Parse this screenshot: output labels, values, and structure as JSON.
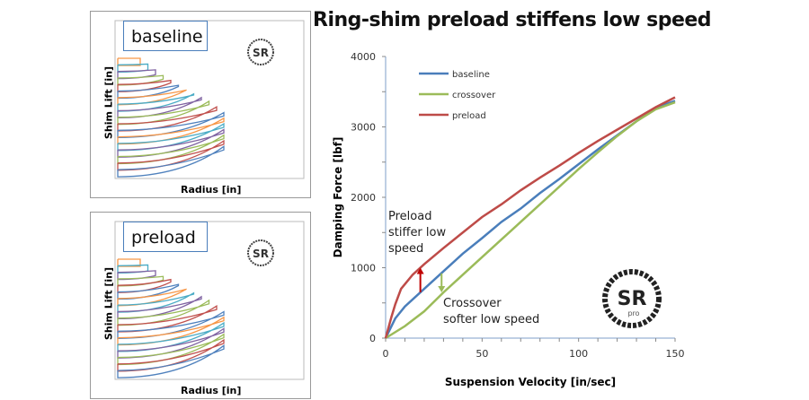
{
  "title": "Ring-shim preload stiffens low speed",
  "panels": [
    {
      "label": "baseline",
      "xlabel": "Radius [in]",
      "ylabel": "Shim Lift [in]"
    },
    {
      "label": "preload",
      "xlabel": "Radius [in]",
      "ylabel": "Shim Lift [in]"
    }
  ],
  "watermark": "www.ShimReStackor.com SR pro",
  "chart_data": {
    "type": "line",
    "title": "",
    "xlabel": "Suspension Velocity [in/sec]",
    "ylabel": "Damping Force [lbf]",
    "xlim": [
      0,
      150
    ],
    "ylim": [
      0,
      4000
    ],
    "xticks": [
      0,
      50,
      100,
      150
    ],
    "yticks": [
      0,
      1000,
      2000,
      3000,
      4000
    ],
    "grid": false,
    "legend": "top-left",
    "series": [
      {
        "name": "baseline",
        "color": "#4a7ebb",
        "x": [
          0,
          5,
          10,
          20,
          30,
          40,
          50,
          60,
          70,
          80,
          90,
          100,
          110,
          120,
          130,
          140,
          150
        ],
        "y": [
          0,
          280,
          450,
          700,
          950,
          1200,
          1420,
          1650,
          1840,
          2060,
          2260,
          2470,
          2680,
          2880,
          3080,
          3270,
          3370
        ]
      },
      {
        "name": "crossover",
        "color": "#9bbb59",
        "x": [
          0,
          10,
          20,
          30,
          40,
          50,
          60,
          70,
          80,
          90,
          100,
          110,
          120,
          130,
          140,
          150
        ],
        "y": [
          0,
          170,
          380,
          650,
          900,
          1150,
          1400,
          1650,
          1900,
          2150,
          2400,
          2640,
          2870,
          3080,
          3250,
          3350
        ]
      },
      {
        "name": "preload",
        "color": "#be4b48",
        "x": [
          0,
          3,
          5,
          8,
          14,
          20,
          30,
          40,
          50,
          60,
          70,
          80,
          90,
          100,
          110,
          120,
          130,
          140,
          150
        ],
        "y": [
          0,
          300,
          480,
          700,
          900,
          1050,
          1280,
          1500,
          1720,
          1900,
          2100,
          2280,
          2450,
          2630,
          2800,
          2960,
          3120,
          3280,
          3420
        ]
      }
    ],
    "annotations": [
      {
        "text": [
          "Preload",
          "stiffer low",
          "speed"
        ],
        "arrow": {
          "x": 18,
          "from": 650,
          "to": 1000,
          "color": "#c00000"
        }
      },
      {
        "text": [
          "Crossover",
          "softer low speed"
        ],
        "arrow": {
          "x": 29,
          "from": 920,
          "to": 650,
          "color": "#9bbb59"
        }
      }
    ]
  }
}
